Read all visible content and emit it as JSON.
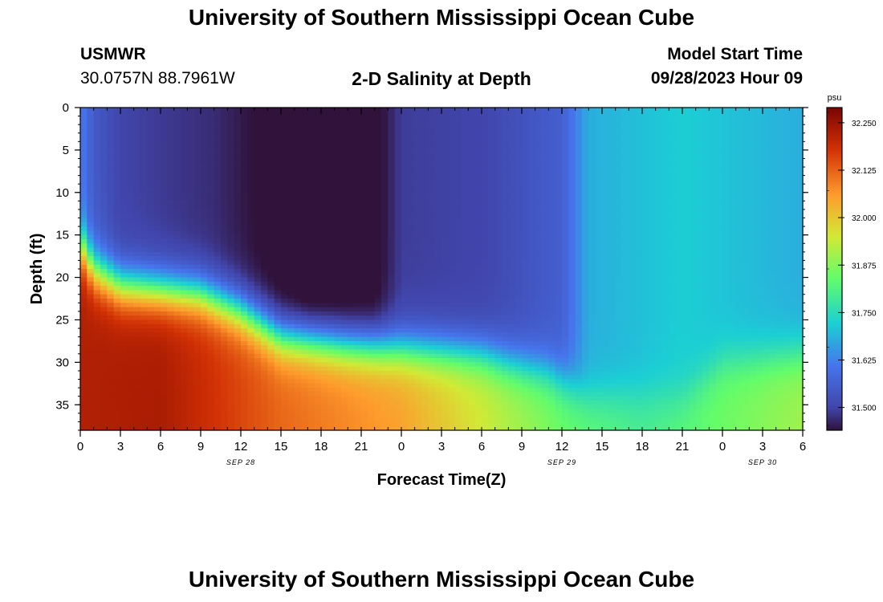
{
  "header": {
    "title_top": "University of Southern Mississippi Ocean Cube",
    "title_bottom": "University of Southern Mississippi Ocean Cube",
    "station": "USMWR",
    "coords": "30.0757N  88.7961W",
    "plot_title": "2-D Salinity at Depth",
    "model_start_label": "Model Start Time",
    "model_start_value": "09/28/2023 Hour 09"
  },
  "chart_data": {
    "type": "heatmap",
    "title": "2-D Salinity at Depth",
    "xlabel": "Forecast Time(Z)",
    "ylabel": "Depth (ft)",
    "units": "psu",
    "x_tick_labels": [
      "0",
      "3",
      "6",
      "9",
      "12",
      "15",
      "18",
      "21",
      "0",
      "3",
      "6",
      "9",
      "12",
      "15",
      "18",
      "21",
      "0",
      "3",
      "6"
    ],
    "x_hours": [
      0,
      3,
      6,
      9,
      12,
      15,
      18,
      21,
      24,
      27,
      30,
      33,
      36,
      39,
      42,
      45,
      48,
      51,
      54
    ],
    "date_labels": [
      {
        "text": "SEP 28",
        "hour": 12
      },
      {
        "text": "SEP 29",
        "hour": 36
      },
      {
        "text": "SEP 30",
        "hour": 51
      }
    ],
    "y_ticks": [
      0,
      5,
      10,
      15,
      20,
      25,
      30,
      35
    ],
    "y_range": [
      0,
      38
    ],
    "x_range": [
      0,
      54
    ],
    "colorbar_ticks": [
      "32.250",
      "32.125",
      "32.000",
      "31.875",
      "31.750",
      "31.625",
      "31.500"
    ],
    "colorbar_values": [
      32.25,
      32.125,
      32.0,
      31.875,
      31.75,
      31.625,
      31.5
    ],
    "color_range": [
      31.44,
      32.29
    ],
    "grid": false,
    "surface_salinity_by_hour": [
      {
        "hour": 0,
        "value": 31.62
      },
      {
        "hour": 1,
        "value": 31.55
      },
      {
        "hour": 3,
        "value": 31.5
      },
      {
        "hour": 10,
        "value": 31.47
      },
      {
        "hour": 17,
        "value": 31.4
      },
      {
        "hour": 22,
        "value": 31.42
      },
      {
        "hour": 24,
        "value": 31.49
      },
      {
        "hour": 30,
        "value": 31.5
      },
      {
        "hour": 36,
        "value": 31.56
      },
      {
        "hour": 38,
        "value": 31.68
      },
      {
        "hour": 45,
        "value": 31.72
      },
      {
        "hour": 54,
        "value": 31.68
      }
    ],
    "halocline_depth_ft_by_hour": [
      {
        "hour": 0,
        "value": 16
      },
      {
        "hour": 1,
        "value": 19
      },
      {
        "hour": 3,
        "value": 21
      },
      {
        "hour": 9,
        "value": 22
      },
      {
        "hour": 12,
        "value": 24
      },
      {
        "hour": 15,
        "value": 27
      },
      {
        "hour": 20,
        "value": 28
      },
      {
        "hour": 30,
        "value": 29
      },
      {
        "hour": 32,
        "value": 30
      },
      {
        "hour": 35,
        "value": 31
      },
      {
        "hour": 38,
        "value": 34
      },
      {
        "hour": 45,
        "value": 34
      },
      {
        "hour": 48,
        "value": 30
      },
      {
        "hour": 54,
        "value": 29
      }
    ],
    "bottom_salinity_by_hour": [
      {
        "hour": 0,
        "value": 32.22
      },
      {
        "hour": 6,
        "value": 32.23
      },
      {
        "hour": 15,
        "value": 32.12
      },
      {
        "hour": 24,
        "value": 32.05
      },
      {
        "hour": 30,
        "value": 31.95
      },
      {
        "hour": 36,
        "value": 31.85
      },
      {
        "hour": 42,
        "value": 31.8
      },
      {
        "hour": 48,
        "value": 31.85
      },
      {
        "hour": 54,
        "value": 31.9
      }
    ]
  }
}
